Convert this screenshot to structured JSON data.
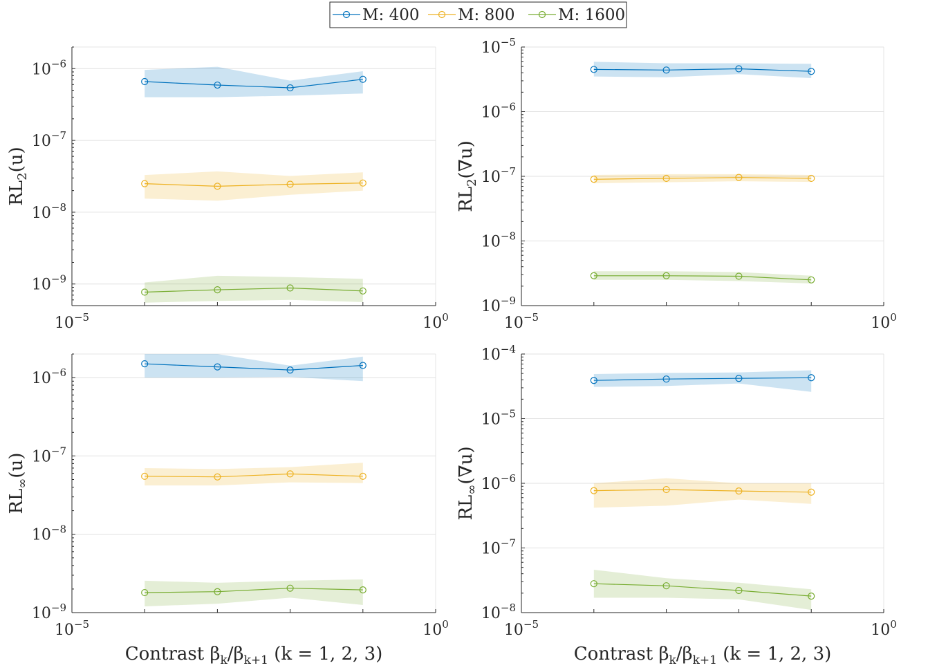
{
  "legend": {
    "location": "top-center",
    "entries": [
      "M: 400",
      "M: 800",
      "M: 1600"
    ]
  },
  "colors": {
    "M400": "#0072BD",
    "M800": "#EDB120",
    "M1600": "#77AC30",
    "axis": "#262626",
    "grid": "#e0e0e0"
  },
  "chart_data": [
    {
      "type": "line",
      "ylabel": "RL2(u)",
      "xlabel": "",
      "xscale": "log",
      "yscale": "log",
      "xlim": [
        1e-05,
        1
      ],
      "ylim": [
        5e-10,
        2e-06
      ],
      "yticks": [
        -9,
        -8,
        -7,
        -6
      ],
      "x": [
        0.0001,
        0.001,
        0.01,
        0.1
      ],
      "series": [
        {
          "name": "M: 400",
          "values": [
            6.6e-07,
            5.9e-07,
            5.4e-07,
            7.1e-07
          ],
          "lower": [
            4e-07,
            4e-07,
            4.2e-07,
            4.5e-07
          ],
          "upper": [
            9.6e-07,
            1.06e-06,
            6.8e-07,
            9.2e-07
          ]
        },
        {
          "name": "M: 800",
          "values": [
            2.5e-08,
            2.3e-08,
            2.45e-08,
            2.55e-08
          ],
          "lower": [
            1.55e-08,
            1.45e-08,
            1.75e-08,
            2e-08
          ],
          "upper": [
            3.3e-08,
            3.7e-08,
            3.2e-08,
            3.6e-08
          ]
        },
        {
          "name": "M: 1600",
          "values": [
            7.7e-10,
            8.3e-10,
            8.8e-10,
            8e-10
          ],
          "lower": [
            5.5e-10,
            5.8e-10,
            6e-10,
            5.6e-10
          ],
          "upper": [
            1.05e-09,
            1.3e-09,
            1.25e-09,
            1.18e-09
          ]
        }
      ]
    },
    {
      "type": "line",
      "ylabel": "RL2(∇u)",
      "xlabel": "",
      "xscale": "log",
      "yscale": "log",
      "xlim": [
        1e-05,
        1
      ],
      "ylim": [
        1e-09,
        1e-05
      ],
      "yticks": [
        -9,
        -8,
        -7,
        -6,
        -5
      ],
      "x": [
        0.0001,
        0.001,
        0.01,
        0.1
      ],
      "series": [
        {
          "name": "M: 400",
          "values": [
            4.5e-06,
            4.4e-06,
            4.6e-06,
            4.2e-06
          ],
          "lower": [
            3.5e-06,
            3.4e-06,
            3.8e-06,
            3.3e-06
          ],
          "upper": [
            5.9e-06,
            5.6e-06,
            5.6e-06,
            5.5e-06
          ]
        },
        {
          "name": "M: 800",
          "values": [
            9e-08,
            9.3e-08,
            9.6e-08,
            9.3e-08
          ],
          "lower": [
            7.8e-08,
            8.1e-08,
            8.4e-08,
            8.2e-08
          ],
          "upper": [
            1.05e-07,
            1.08e-07,
            1.08e-07,
            1.05e-07
          ]
        },
        {
          "name": "M: 1600",
          "values": [
            2.9e-09,
            2.9e-09,
            2.85e-09,
            2.5e-09
          ],
          "lower": [
            2.5e-09,
            2.5e-09,
            2.4e-09,
            2.2e-09
          ],
          "upper": [
            3.4e-09,
            3.4e-09,
            3.3e-09,
            2.9e-09
          ]
        }
      ]
    },
    {
      "type": "line",
      "ylabel": "RL∞(u)",
      "xlabel": "Contrast βk/βk+1 (k = 1, 2, 3)",
      "xscale": "log",
      "yscale": "log",
      "xlim": [
        1e-05,
        1
      ],
      "ylim": [
        1e-09,
        2e-06
      ],
      "yticks": [
        -9,
        -8,
        -7,
        -6
      ],
      "x": [
        0.0001,
        0.001,
        0.01,
        0.1
      ],
      "series": [
        {
          "name": "M: 400",
          "values": [
            1.5e-06,
            1.37e-06,
            1.25e-06,
            1.43e-06
          ],
          "lower": [
            1e-06,
            1e-06,
            1.02e-06,
            9e-07
          ],
          "upper": [
            2e-06,
            2e-06,
            1.42e-06,
            1.85e-06
          ]
        },
        {
          "name": "M: 800",
          "values": [
            5.5e-08,
            5.4e-08,
            5.9e-08,
            5.5e-08
          ],
          "lower": [
            4.2e-08,
            4.2e-08,
            4.6e-08,
            4.5e-08
          ],
          "upper": [
            7e-08,
            6.8e-08,
            7.2e-08,
            8.2e-08
          ]
        },
        {
          "name": "M: 1600",
          "values": [
            1.8e-09,
            1.85e-09,
            2.05e-09,
            1.95e-09
          ],
          "lower": [
            1.2e-09,
            1.3e-09,
            1.55e-09,
            1.25e-09
          ],
          "upper": [
            2.55e-09,
            2.4e-09,
            2.55e-09,
            2.65e-09
          ]
        }
      ]
    },
    {
      "type": "line",
      "ylabel": "RL∞(∇u)",
      "xlabel": "Contrast βk/βk+1 (k = 1, 2, 3)",
      "xscale": "log",
      "yscale": "log",
      "xlim": [
        1e-05,
        1
      ],
      "ylim": [
        1e-08,
        0.0001
      ],
      "yticks": [
        -8,
        -7,
        -6,
        -5,
        -4
      ],
      "x": [
        0.0001,
        0.001,
        0.01,
        0.1
      ],
      "series": [
        {
          "name": "M: 400",
          "values": [
            3.9e-05,
            4.1e-05,
            4.2e-05,
            4.3e-05
          ],
          "lower": [
            3.1e-05,
            3.2e-05,
            3.5e-05,
            2.6e-05
          ],
          "upper": [
            4.9e-05,
            5.1e-05,
            5.2e-05,
            5.6e-05
          ]
        },
        {
          "name": "M: 800",
          "values": [
            7.7e-07,
            8e-07,
            7.6e-07,
            7.3e-07
          ],
          "lower": [
            4.2e-07,
            4.5e-07,
            5.6e-07,
            4.8e-07
          ],
          "upper": [
            1e-06,
            1.2e-06,
            1e-06,
            1e-06
          ]
        },
        {
          "name": "M: 1600",
          "values": [
            2.8e-08,
            2.6e-08,
            2.2e-08,
            1.8e-08
          ],
          "lower": [
            1.7e-08,
            1.7e-08,
            1.6e-08,
            1.1e-08
          ],
          "upper": [
            4.6e-08,
            3.4e-08,
            2.9e-08,
            2.3e-08
          ]
        }
      ]
    }
  ]
}
